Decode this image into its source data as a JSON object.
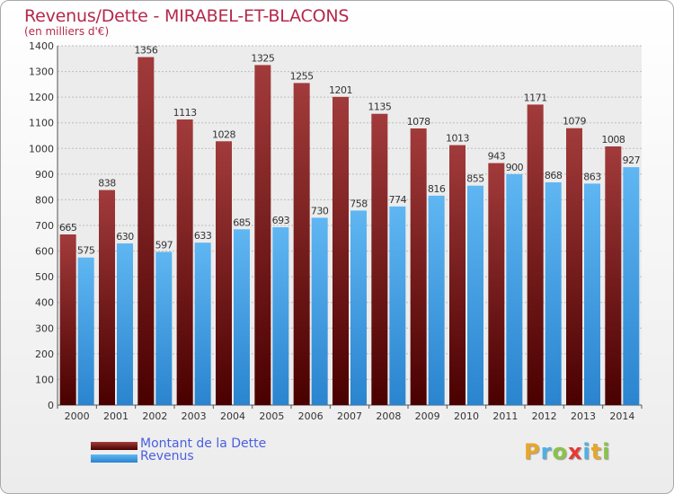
{
  "header": {
    "title": "Revenus/Dette - MIRABEL-ET-BLACONS",
    "subtitle": "(en milliers d'€)"
  },
  "legend": {
    "items": [
      {
        "label": "Montant de la Dette",
        "color": "#7a1a1a"
      },
      {
        "label": "Revenus",
        "color": "#4ea4e8"
      }
    ]
  },
  "brand": {
    "logo_text": "Proxiti",
    "logo_letters": [
      {
        "ch": "P",
        "color": "#e8a62a"
      },
      {
        "ch": "r",
        "color": "#4fb0e6"
      },
      {
        "ch": "o",
        "color": "#8bc34a"
      },
      {
        "ch": "x",
        "color": "#e53935"
      },
      {
        "ch": "i",
        "color": "#4fb0e6"
      },
      {
        "ch": "t",
        "color": "#e8a62a"
      },
      {
        "ch": "i",
        "color": "#8bc34a"
      }
    ]
  },
  "chart_data": {
    "type": "bar",
    "title": "Revenus/Dette - MIRABEL-ET-BLACONS",
    "ylabel": "(en milliers d'€)",
    "xlabel": "",
    "categories": [
      "2000",
      "2001",
      "2002",
      "2003",
      "2004",
      "2005",
      "2006",
      "2007",
      "2008",
      "2009",
      "2010",
      "2011",
      "2012",
      "2013",
      "2014"
    ],
    "series": [
      {
        "name": "Montant de la Dette",
        "color": "#7a1a1a",
        "values": [
          665,
          838,
          1356,
          1113,
          1028,
          1325,
          1255,
          1201,
          1135,
          1078,
          1013,
          943,
          1171,
          1079,
          1008
        ]
      },
      {
        "name": "Revenus",
        "color": "#4ea4e8",
        "values": [
          575,
          630,
          597,
          633,
          685,
          693,
          730,
          758,
          774,
          816,
          855,
          900,
          868,
          863,
          927
        ]
      }
    ],
    "ylim": [
      0,
      1400
    ],
    "yticks": [
      0,
      100,
      200,
      300,
      400,
      500,
      600,
      700,
      800,
      900,
      1000,
      1100,
      1200,
      1300,
      1400
    ],
    "grid": true,
    "legend_position": "bottom-left"
  }
}
